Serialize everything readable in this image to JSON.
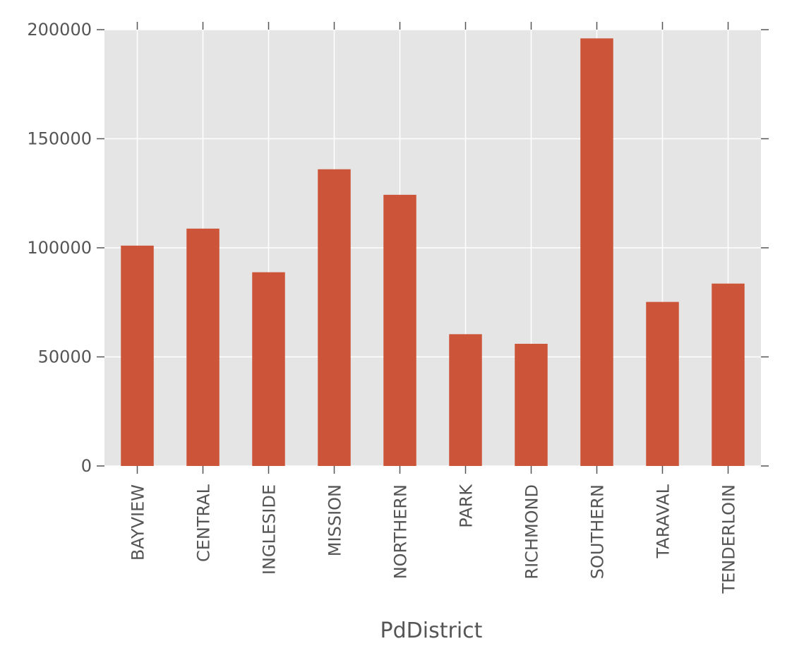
{
  "chart_data": {
    "type": "bar",
    "title": "",
    "xlabel": "PdDistrict",
    "ylabel": "",
    "categories": [
      "BAYVIEW",
      "CENTRAL",
      "INGLESIDE",
      "MISSION",
      "NORTHERN",
      "PARK",
      "RICHMOND",
      "SOUTHERN",
      "TARAVAL",
      "TENDERLOIN"
    ],
    "values": [
      101000,
      108800,
      88800,
      136000,
      124300,
      60400,
      56000,
      196000,
      75200,
      83600
    ],
    "ylim": [
      0,
      200000
    ],
    "yticks": [
      "0",
      "50000",
      "100000",
      "150000",
      "200000"
    ],
    "grid": true,
    "legend": "none",
    "colors": {
      "bar": "#cc5438",
      "plot_background": "#e5e5e5",
      "grid": "#ffffff",
      "text": "#555555"
    }
  }
}
